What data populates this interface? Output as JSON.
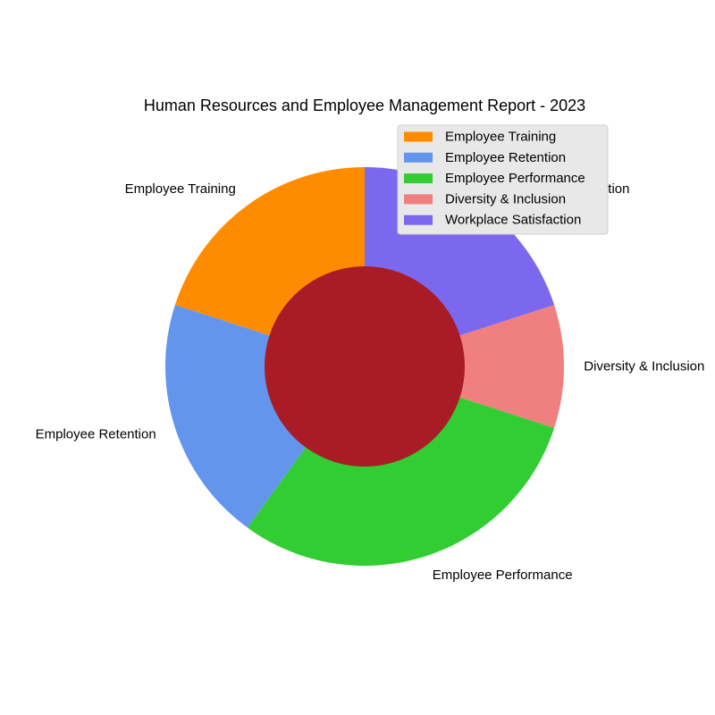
{
  "chart_data": {
    "type": "pie",
    "title": "Human Resources and Employee Management Report - 2023",
    "categories": [
      "Employee Training",
      "Employee Retention",
      "Employee Performance",
      "Diversity & Inclusion",
      "Workplace Satisfaction"
    ],
    "values": [
      20,
      20,
      30,
      10,
      20
    ],
    "colors": [
      "#ff8c00",
      "#6495ed",
      "#32cd32",
      "#f08080",
      "#7b68ee"
    ],
    "center_color": "#a91b25",
    "start_angle_deg": 90,
    "direction": "counterclockwise",
    "donut": true,
    "legend": "top-right"
  }
}
